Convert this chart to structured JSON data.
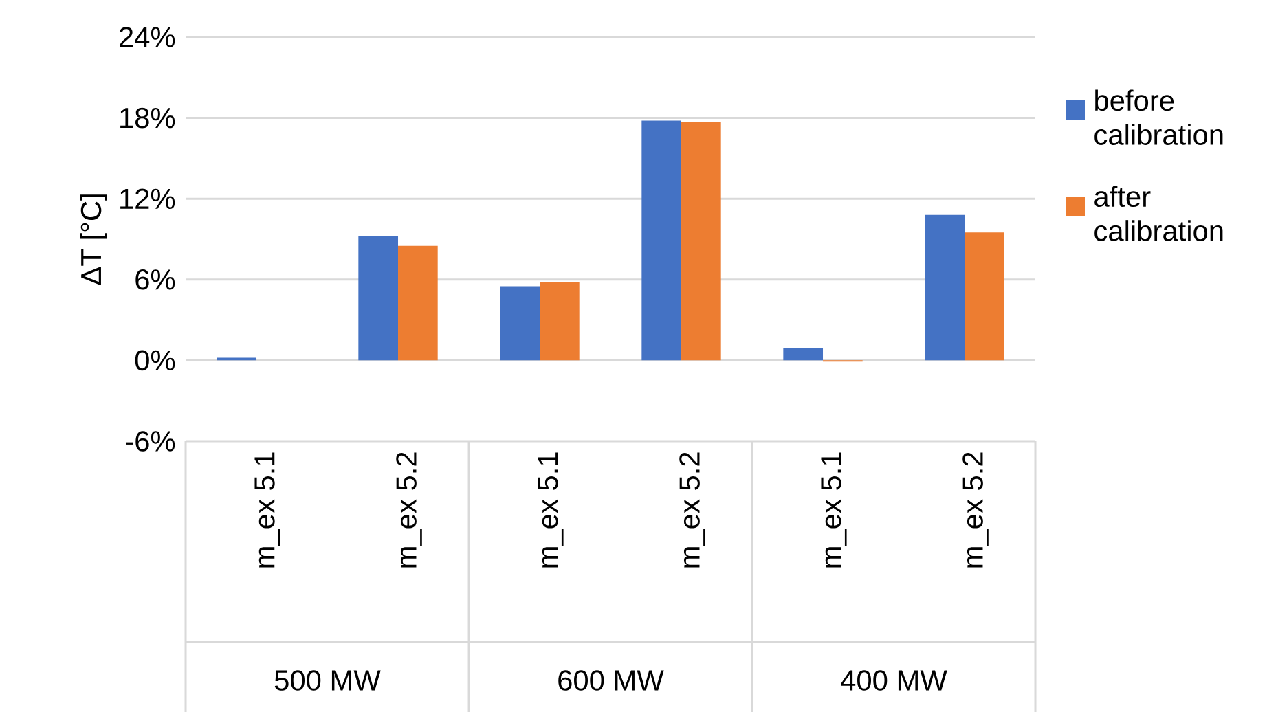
{
  "chart_data": {
    "type": "bar",
    "ylabel": "ΔT [°C]",
    "categories": [
      "m_ex 5.1",
      "m_ex 5.2",
      "m_ex 5.1",
      "m_ex 5.2",
      "m_ex 5.1",
      "m_ex 5.2"
    ],
    "series": [
      {
        "name": "before calibration",
        "color": "#4472c4",
        "values": [
          0.2,
          9.2,
          5.5,
          17.8,
          0.9,
          10.8
        ]
      },
      {
        "name": "after calibration",
        "color": "#ed7d31",
        "values": [
          0,
          8.5,
          5.8,
          17.7,
          -0.1,
          9.5
        ]
      }
    ],
    "annotations": [
      "500 MW",
      "600 MW",
      "400 MW"
    ],
    "ylim": [
      -6,
      24
    ],
    "yticks": [
      {
        "value": -6,
        "label": "-6%"
      },
      {
        "value": 0,
        "label": "0%"
      },
      {
        "value": 6,
        "label": "6%"
      },
      {
        "value": 12,
        "label": "12%"
      },
      {
        "value": 18,
        "label": "18%"
      },
      {
        "value": 24,
        "label": "24%"
      }
    ],
    "grid": "y",
    "legend": "right"
  }
}
